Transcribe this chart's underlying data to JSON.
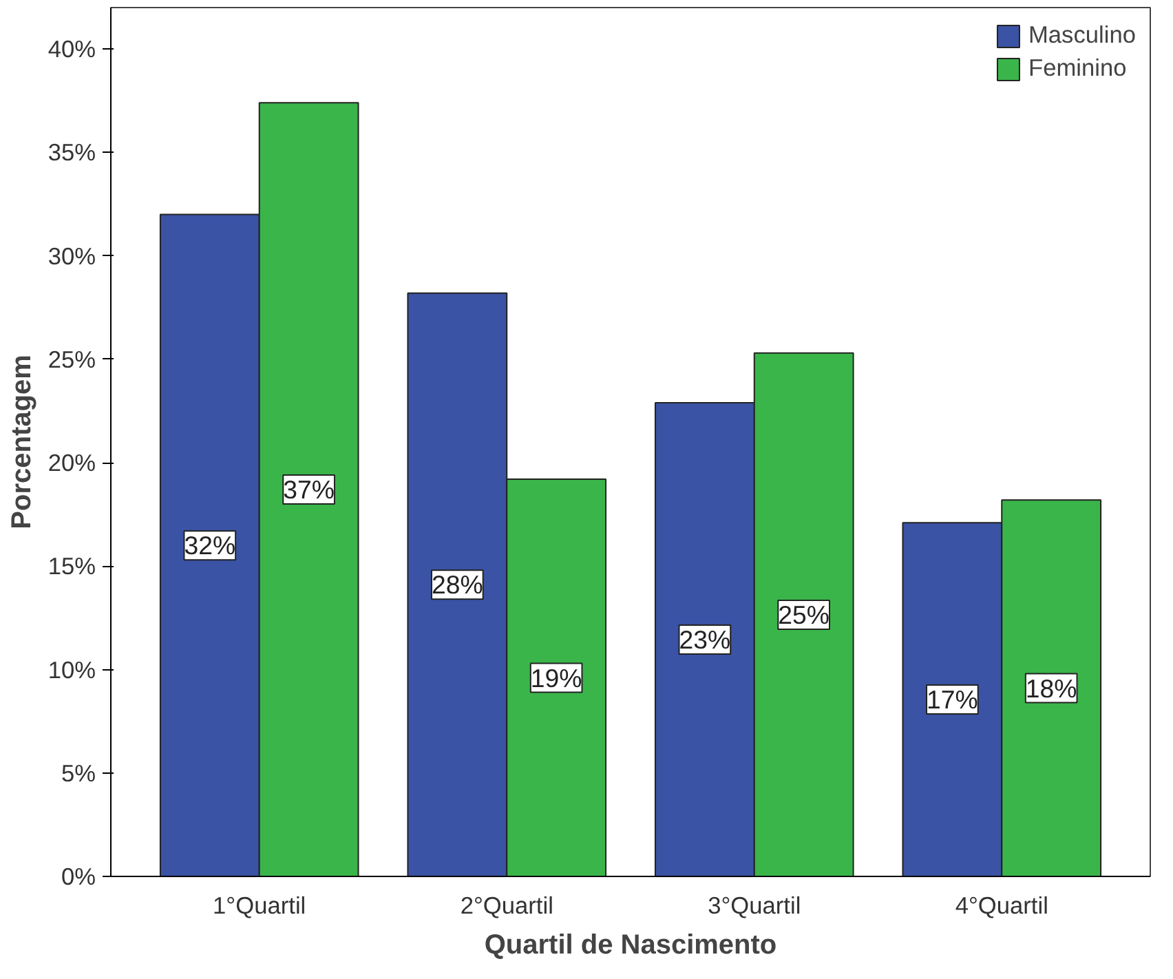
{
  "chart_data": {
    "type": "bar",
    "xlabel": "Quartil de Nascimento",
    "ylabel": "Porcentagem",
    "categories": [
      "1°Quartil",
      "2°Quartil",
      "3°Quartil",
      "4°Quartil"
    ],
    "series": [
      {
        "name": "Masculino",
        "color": "#3a53a4",
        "values": [
          32.0,
          28.2,
          22.9,
          17.1
        ],
        "value_labels": [
          "32%",
          "28%",
          "23%",
          "17%"
        ]
      },
      {
        "name": "Feminino",
        "color": "#3ab54a",
        "values": [
          37.4,
          19.2,
          25.3,
          18.2
        ],
        "value_labels": [
          "37%",
          "19%",
          "25%",
          "18%"
        ]
      }
    ],
    "ylim": [
      0,
      42
    ],
    "yticks": [
      {
        "value": 0,
        "label": "0%"
      },
      {
        "value": 5,
        "label": "5%"
      },
      {
        "value": 10,
        "label": "10%"
      },
      {
        "value": 15,
        "label": "15%"
      },
      {
        "value": 20,
        "label": "20%"
      },
      {
        "value": 25,
        "label": "25%"
      },
      {
        "value": 30,
        "label": "30%"
      },
      {
        "value": 35,
        "label": "35%"
      },
      {
        "value": 40,
        "label": "40%"
      }
    ],
    "legend": "top right",
    "grid": false
  }
}
